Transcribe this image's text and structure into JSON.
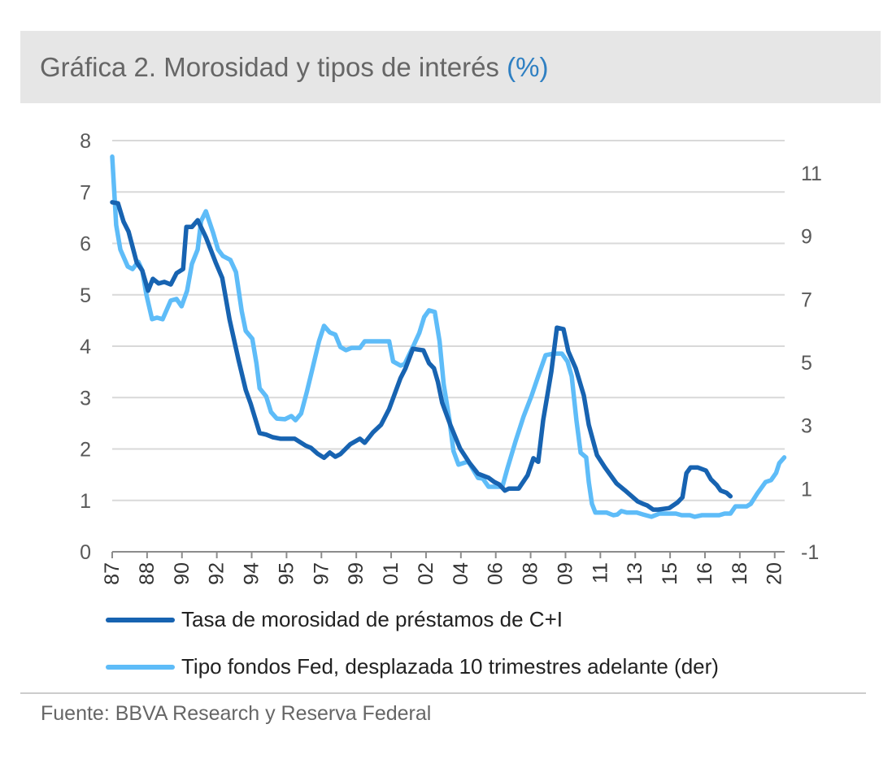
{
  "header": {
    "title": "Gráfica 2. Morosidad y tipos de interés",
    "unit": "(%)"
  },
  "source": "Fuente: BBVA Research y Reserva Federal",
  "colors": {
    "dark": "#1763b1",
    "light": "#5ebcf8",
    "grid": "#d9d9d9",
    "axis_text": "#595959"
  },
  "chart_data": {
    "type": "line",
    "title": "Gráfica 2. Morosidad y tipos de interés (%)",
    "xlim": [
      1987.0,
      2020.75
    ],
    "x_ticks": [
      1987.0,
      1988.75,
      1990.5,
      1992.25,
      1994.0,
      1995.75,
      1997.5,
      1999.25,
      2001.0,
      2002.75,
      2004.5,
      2006.25,
      2008.0,
      2009.75,
      2011.5,
      2013.25,
      2015.0,
      2016.75,
      2018.5,
      2020.25
    ],
    "x_tick_labels": [
      "87",
      "88",
      "90",
      "92",
      "94",
      "95",
      "97",
      "99",
      "01",
      "02",
      "04",
      "06",
      "08",
      "09",
      "11",
      "13",
      "15",
      "16",
      "18",
      "20"
    ],
    "y_left": {
      "lim": [
        0,
        8
      ],
      "ticks": [
        "0",
        "1",
        "2",
        "3",
        "4",
        "5",
        "6",
        "7",
        "8"
      ]
    },
    "y_right": {
      "lim": [
        -1,
        12.03
      ],
      "ticks": [
        "-1",
        "1",
        "3",
        "5",
        "7",
        "9",
        "11"
      ]
    },
    "grid": true,
    "legend_placement": "bottom",
    "series": [
      {
        "name": "Tasa de morosidad de préstamos de C+I",
        "axis": "left",
        "color": "#1763b1",
        "points": [
          [
            1987.0,
            6.8
          ],
          [
            1987.29,
            6.78
          ],
          [
            1987.57,
            6.42
          ],
          [
            1987.82,
            6.23
          ],
          [
            1988.23,
            5.63
          ],
          [
            1988.51,
            5.47
          ],
          [
            1988.8,
            5.08
          ],
          [
            1989.04,
            5.31
          ],
          [
            1989.33,
            5.22
          ],
          [
            1989.62,
            5.25
          ],
          [
            1989.94,
            5.2
          ],
          [
            1990.23,
            5.42
          ],
          [
            1990.56,
            5.5
          ],
          [
            1990.72,
            6.32
          ],
          [
            1991.0,
            6.32
          ],
          [
            1991.29,
            6.45
          ],
          [
            1991.7,
            6.12
          ],
          [
            1992.19,
            5.63
          ],
          [
            1992.52,
            5.33
          ],
          [
            1992.89,
            4.52
          ],
          [
            1993.34,
            3.73
          ],
          [
            1993.7,
            3.15
          ],
          [
            1993.95,
            2.88
          ],
          [
            1994.4,
            2.31
          ],
          [
            1994.73,
            2.28
          ],
          [
            1995.05,
            2.23
          ],
          [
            1995.46,
            2.2
          ],
          [
            1996.16,
            2.2
          ],
          [
            1996.69,
            2.07
          ],
          [
            1996.98,
            2.02
          ],
          [
            1997.3,
            1.91
          ],
          [
            1997.63,
            1.83
          ],
          [
            1997.92,
            1.93
          ],
          [
            1998.2,
            1.85
          ],
          [
            1998.45,
            1.9
          ],
          [
            1998.94,
            2.09
          ],
          [
            1999.43,
            2.2
          ],
          [
            1999.67,
            2.12
          ],
          [
            2000.08,
            2.32
          ],
          [
            2000.49,
            2.47
          ],
          [
            2000.9,
            2.78
          ],
          [
            2001.47,
            3.38
          ],
          [
            2001.72,
            3.57
          ],
          [
            2002.09,
            3.95
          ],
          [
            2002.62,
            3.92
          ],
          [
            2002.9,
            3.67
          ],
          [
            2003.15,
            3.57
          ],
          [
            2003.35,
            3.3
          ],
          [
            2003.56,
            2.9
          ],
          [
            2003.97,
            2.47
          ],
          [
            2004.46,
            2.01
          ],
          [
            2004.95,
            1.72
          ],
          [
            2005.36,
            1.52
          ],
          [
            2005.89,
            1.44
          ],
          [
            2006.17,
            1.36
          ],
          [
            2006.42,
            1.31
          ],
          [
            2006.71,
            1.19
          ],
          [
            2006.91,
            1.23
          ],
          [
            2007.4,
            1.23
          ],
          [
            2007.85,
            1.49
          ],
          [
            2008.14,
            1.82
          ],
          [
            2008.38,
            1.75
          ],
          [
            2008.63,
            2.56
          ],
          [
            2009.04,
            3.51
          ],
          [
            2009.32,
            4.36
          ],
          [
            2009.65,
            4.33
          ],
          [
            2009.89,
            3.9
          ],
          [
            2010.26,
            3.57
          ],
          [
            2010.67,
            3.04
          ],
          [
            2010.92,
            2.47
          ],
          [
            2011.33,
            1.88
          ],
          [
            2011.73,
            1.64
          ],
          [
            2012.31,
            1.33
          ],
          [
            2012.72,
            1.2
          ],
          [
            2013.37,
            0.98
          ],
          [
            2013.66,
            0.93
          ],
          [
            2013.86,
            0.9
          ],
          [
            2014.15,
            0.82
          ],
          [
            2014.39,
            0.82
          ],
          [
            2014.96,
            0.85
          ],
          [
            2015.37,
            0.96
          ],
          [
            2015.62,
            1.06
          ],
          [
            2015.82,
            1.53
          ],
          [
            2016.03,
            1.64
          ],
          [
            2016.39,
            1.64
          ],
          [
            2016.8,
            1.58
          ],
          [
            2017.05,
            1.41
          ],
          [
            2017.34,
            1.3
          ],
          [
            2017.54,
            1.19
          ],
          [
            2017.83,
            1.15
          ],
          [
            2018.03,
            1.08
          ]
        ]
      },
      {
        "name": "Tipo fondos Fed, desplazada 10 trimestres adelante (der)",
        "axis": "right",
        "color": "#5ebcf8",
        "points": [
          [
            1987.0,
            11.52
          ],
          [
            1987.2,
            9.35
          ],
          [
            1987.41,
            8.58
          ],
          [
            1987.78,
            8.04
          ],
          [
            1988.02,
            7.96
          ],
          [
            1988.31,
            8.19
          ],
          [
            1988.51,
            7.91
          ],
          [
            1988.72,
            7.14
          ],
          [
            1989.0,
            6.37
          ],
          [
            1989.25,
            6.42
          ],
          [
            1989.53,
            6.37
          ],
          [
            1989.94,
            6.96
          ],
          [
            1990.23,
            7.01
          ],
          [
            1990.48,
            6.78
          ],
          [
            1990.76,
            7.27
          ],
          [
            1991.0,
            8.12
          ],
          [
            1991.29,
            8.58
          ],
          [
            1991.46,
            9.48
          ],
          [
            1991.7,
            9.79
          ],
          [
            1992.07,
            9.1
          ],
          [
            1992.31,
            8.58
          ],
          [
            1992.56,
            8.37
          ],
          [
            1992.93,
            8.25
          ],
          [
            1993.21,
            7.86
          ],
          [
            1993.5,
            6.62
          ],
          [
            1993.7,
            6.0
          ],
          [
            1994.03,
            5.75
          ],
          [
            1994.24,
            4.97
          ],
          [
            1994.4,
            4.18
          ],
          [
            1994.73,
            3.92
          ],
          [
            1994.97,
            3.43
          ],
          [
            1995.26,
            3.22
          ],
          [
            1995.67,
            3.2
          ],
          [
            1995.99,
            3.3
          ],
          [
            1996.2,
            3.17
          ],
          [
            1996.48,
            3.38
          ],
          [
            1996.77,
            4.07
          ],
          [
            1997.02,
            4.72
          ],
          [
            1997.38,
            5.67
          ],
          [
            1997.63,
            6.16
          ],
          [
            1997.92,
            5.95
          ],
          [
            1998.2,
            5.88
          ],
          [
            1998.45,
            5.49
          ],
          [
            1998.73,
            5.39
          ],
          [
            1999.02,
            5.46
          ],
          [
            1999.43,
            5.46
          ],
          [
            1999.67,
            5.67
          ],
          [
            2000.9,
            5.67
          ],
          [
            2001.1,
            5.03
          ],
          [
            2001.47,
            4.9
          ],
          [
            2001.68,
            4.95
          ],
          [
            2002.09,
            5.49
          ],
          [
            2002.41,
            5.93
          ],
          [
            2002.66,
            6.44
          ],
          [
            2002.9,
            6.65
          ],
          [
            2003.19,
            6.6
          ],
          [
            2003.43,
            5.67
          ],
          [
            2003.64,
            4.3
          ],
          [
            2003.93,
            3.17
          ],
          [
            2004.13,
            2.19
          ],
          [
            2004.38,
            1.76
          ],
          [
            2004.87,
            1.86
          ],
          [
            2005.36,
            1.34
          ],
          [
            2005.6,
            1.32
          ],
          [
            2005.89,
            1.06
          ],
          [
            2006.58,
            1.06
          ],
          [
            2006.83,
            1.63
          ],
          [
            2007.24,
            2.5
          ],
          [
            2007.64,
            3.28
          ],
          [
            2008.05,
            3.95
          ],
          [
            2008.42,
            4.64
          ],
          [
            2008.75,
            5.23
          ],
          [
            2009.16,
            5.28
          ],
          [
            2009.57,
            5.28
          ],
          [
            2009.85,
            5.03
          ],
          [
            2010.06,
            4.56
          ],
          [
            2010.3,
            3.17
          ],
          [
            2010.51,
            2.14
          ],
          [
            2010.79,
            1.99
          ],
          [
            2010.92,
            1.21
          ],
          [
            2011.08,
            0.52
          ],
          [
            2011.25,
            0.24
          ],
          [
            2011.82,
            0.24
          ],
          [
            2012.15,
            0.16
          ],
          [
            2012.35,
            0.18
          ],
          [
            2012.55,
            0.29
          ],
          [
            2012.84,
            0.24
          ],
          [
            2013.33,
            0.24
          ],
          [
            2013.66,
            0.18
          ],
          [
            2014.06,
            0.11
          ],
          [
            2014.47,
            0.21
          ],
          [
            2015.29,
            0.21
          ],
          [
            2015.58,
            0.16
          ],
          [
            2015.99,
            0.16
          ],
          [
            2016.23,
            0.11
          ],
          [
            2016.6,
            0.16
          ],
          [
            2017.46,
            0.16
          ],
          [
            2017.74,
            0.21
          ],
          [
            2018.03,
            0.21
          ],
          [
            2018.28,
            0.44
          ],
          [
            2018.85,
            0.44
          ],
          [
            2019.05,
            0.52
          ],
          [
            2019.38,
            0.85
          ],
          [
            2019.79,
            1.21
          ],
          [
            2020.07,
            1.27
          ],
          [
            2020.32,
            1.5
          ],
          [
            2020.48,
            1.81
          ],
          [
            2020.73,
            1.99
          ]
        ]
      }
    ]
  }
}
